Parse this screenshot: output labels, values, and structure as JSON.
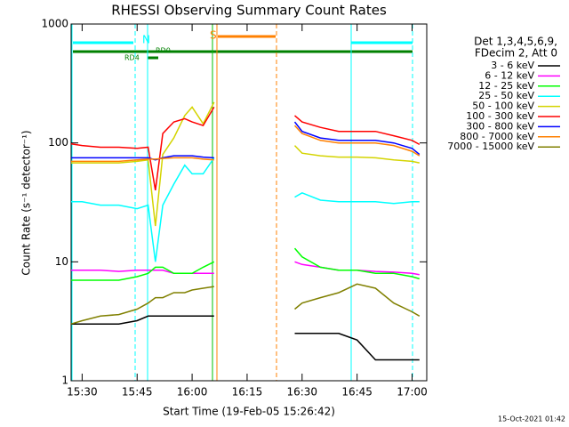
{
  "chart_data": {
    "type": "line",
    "title": "RHESSI Observing Summary Count Rates",
    "x_label": "Start Time (19-Feb-05 15:26:42)",
    "y_label": "Count Rate (s⁻¹ detector⁻¹)",
    "legend_title": [
      "Det 1,3,4,5,6,9,",
      "FDecim 2, Att 0"
    ],
    "annotations": [
      "N",
      "S",
      "RD0",
      "RD4"
    ],
    "timestamp": "15-Oct-2021 01:42",
    "log_y": true,
    "ylim": [
      1,
      1000
    ],
    "yticks": [
      1,
      10,
      100,
      1000
    ],
    "xlim": [
      "15:27",
      "17:04"
    ],
    "xticks": [
      "15:30",
      "15:45",
      "16:00",
      "16:15",
      "16:30",
      "16:45",
      "17:00"
    ],
    "x": [
      "15:27",
      "15:30",
      "15:35",
      "15:40",
      "15:45",
      "15:48",
      "15:50",
      "15:52",
      "15:55",
      "15:58",
      "16:00",
      "16:03",
      "16:06",
      "16:17",
      "16:28",
      "16:30",
      "16:35",
      "16:40",
      "16:45",
      "16:50",
      "16:55",
      "17:00",
      "17:02"
    ],
    "series": [
      {
        "name": "3 - 6 keV",
        "color": "#000000",
        "values": [
          3,
          3,
          3,
          3,
          3.2,
          3.5,
          3.5,
          3.5,
          3.5,
          3.5,
          3.5,
          3.5,
          3.5,
          null,
          2.5,
          2.5,
          2.5,
          2.5,
          2.2,
          1.5,
          1.5,
          1.5,
          1.5
        ]
      },
      {
        "name": "6 - 12 keV",
        "color": "#ff00ff",
        "values": [
          8.5,
          8.5,
          8.5,
          8.3,
          8.5,
          8.5,
          8.5,
          8.5,
          8,
          8,
          8,
          8,
          8,
          null,
          10,
          9.5,
          9,
          8.5,
          8.5,
          8.3,
          8.2,
          8,
          7.8
        ]
      },
      {
        "name": "12 - 25 keV",
        "color": "#00ff00",
        "values": [
          7,
          7,
          7,
          7,
          7.5,
          8,
          9,
          9,
          8,
          8,
          8,
          9,
          10,
          null,
          13,
          11,
          9,
          8.5,
          8.5,
          8,
          8,
          7.5,
          7.2
        ]
      },
      {
        "name": "25 - 50 keV",
        "color": "#00ffff",
        "values": [
          32,
          32,
          30,
          30,
          28,
          30,
          10,
          30,
          45,
          65,
          55,
          55,
          75,
          null,
          35,
          38,
          33,
          32,
          32,
          32,
          31,
          32,
          32
        ]
      },
      {
        "name": "50 - 100 keV",
        "color": "#d4d400",
        "values": [
          68,
          68,
          68,
          68,
          70,
          72,
          20,
          80,
          110,
          170,
          200,
          145,
          220,
          null,
          95,
          82,
          78,
          76,
          76,
          75,
          72,
          70,
          68
        ]
      },
      {
        "name": "100 - 300 keV",
        "color": "#ff0000",
        "values": [
          98,
          95,
          92,
          92,
          90,
          92,
          40,
          120,
          150,
          160,
          150,
          140,
          200,
          null,
          170,
          150,
          135,
          125,
          125,
          125,
          115,
          105,
          97
        ]
      },
      {
        "name": "300 - 800 keV",
        "color": "#0000ff",
        "values": [
          75,
          75,
          75,
          75,
          75,
          75,
          72,
          75,
          78,
          78,
          78,
          76,
          75,
          null,
          150,
          125,
          110,
          105,
          105,
          105,
          100,
          90,
          80
        ]
      },
      {
        "name": "800 - 7000 keV",
        "color": "#ff8000",
        "values": [
          70,
          70,
          70,
          70,
          72,
          73,
          73,
          74,
          75,
          75,
          75,
          73,
          72,
          null,
          140,
          120,
          105,
          100,
          100,
          100,
          95,
          85,
          78
        ]
      },
      {
        "name": "7000 - 15000 keV",
        "color": "#808000",
        "values": [
          3,
          3.2,
          3.5,
          3.6,
          4,
          4.5,
          5,
          5,
          5.5,
          5.5,
          5.8,
          6,
          6.2,
          null,
          4,
          4.5,
          5,
          5.5,
          6.5,
          6,
          4.5,
          3.8,
          3.5
        ]
      }
    ]
  }
}
